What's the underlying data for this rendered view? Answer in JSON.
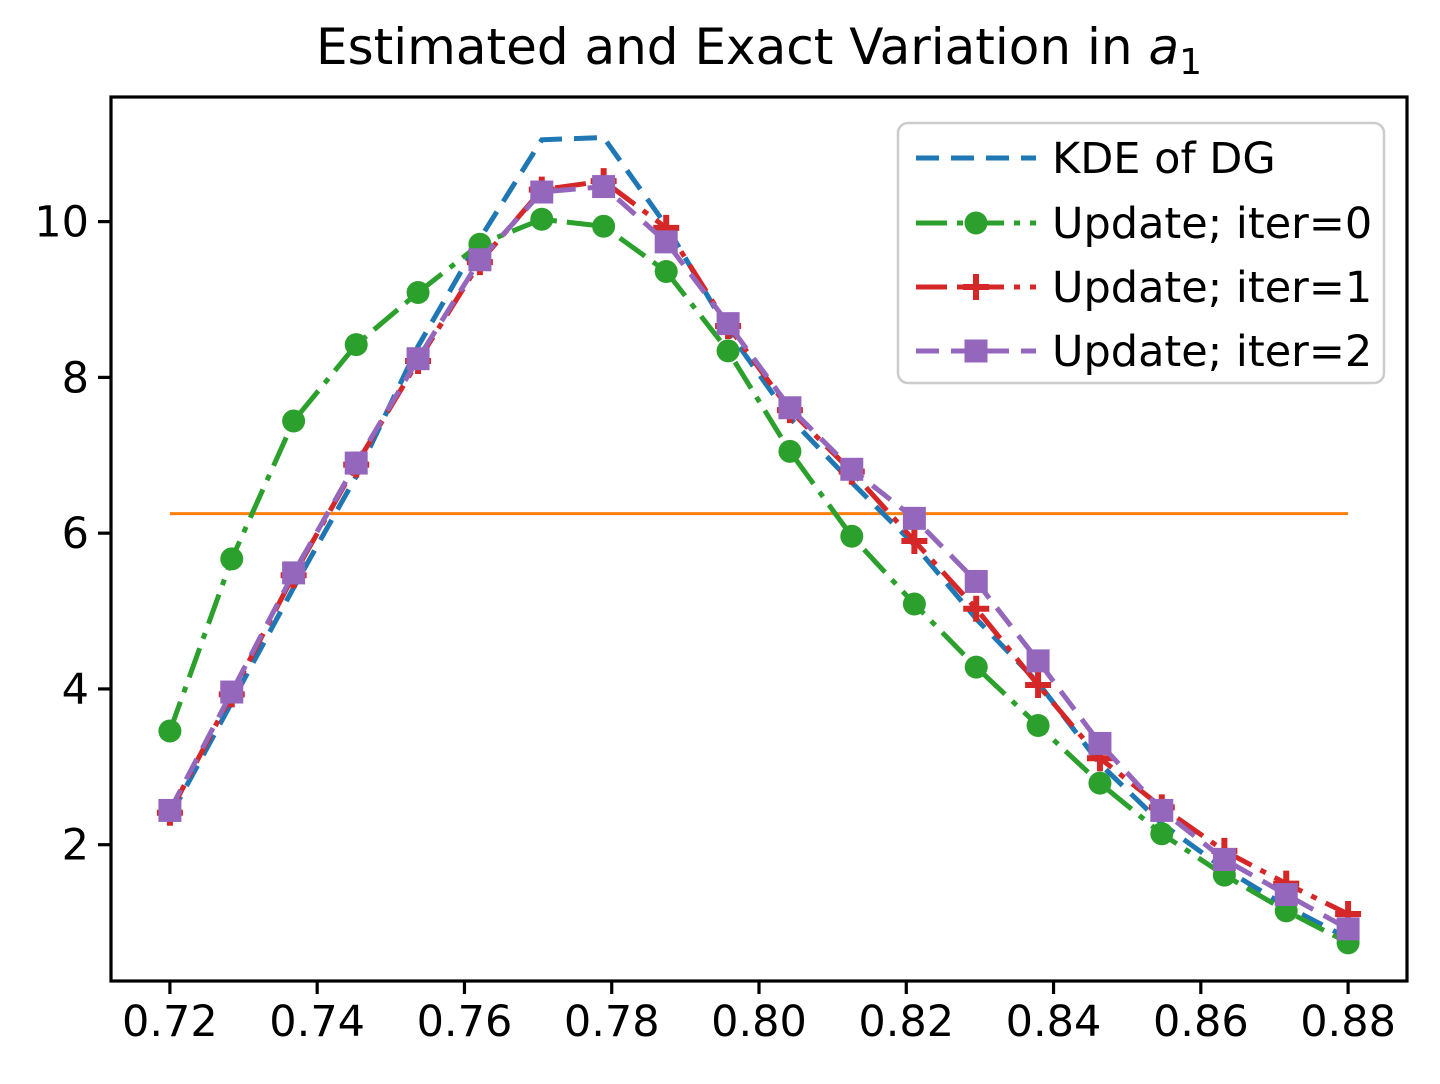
{
  "figure": {
    "title": {
      "main": "Estimated and Exact Variation in ",
      "var": "a",
      "sub": "1"
    }
  },
  "chart_data": {
    "type": "line",
    "title": "Estimated and Exact Variation in a_1",
    "xlabel": "",
    "ylabel": "",
    "grid": false,
    "legend_position": "upper right",
    "xlim": [
      0.712,
      0.888
    ],
    "ylim": [
      0.25,
      11.6
    ],
    "x_ticks": {
      "values": [
        0.72,
        0.74,
        0.76,
        0.78,
        0.8,
        0.82,
        0.84,
        0.86,
        0.88
      ],
      "labels": [
        "0.72",
        "0.74",
        "0.76",
        "0.78",
        "0.80",
        "0.82",
        "0.84",
        "0.86",
        "0.88"
      ]
    },
    "y_ticks": {
      "values": [
        2,
        4,
        6,
        8,
        10
      ],
      "labels": [
        "2",
        "4",
        "6",
        "8",
        "10"
      ]
    },
    "x": [
      0.72,
      0.7284,
      0.7368,
      0.7453,
      0.7537,
      0.7621,
      0.7705,
      0.7789,
      0.7874,
      0.7958,
      0.8042,
      0.8126,
      0.8211,
      0.8295,
      0.8379,
      0.8463,
      0.8547,
      0.8632,
      0.8716,
      0.88
    ],
    "series": [
      {
        "name": "KDE of DG",
        "color": "#1f77b4",
        "linestyle": "dashed",
        "marker": "none",
        "values": [
          2.36,
          3.83,
          5.3,
          6.73,
          8.4,
          9.78,
          11.05,
          11.08,
          9.95,
          8.6,
          7.48,
          6.65,
          5.85,
          4.9,
          4.08,
          3.04,
          2.27,
          1.69,
          1.21,
          0.8
        ]
      },
      {
        "name": "Update; iter=0",
        "color": "#2ca02c",
        "linestyle": "dashdot",
        "marker": "circle",
        "values": [
          3.46,
          5.67,
          7.44,
          8.42,
          9.09,
          9.71,
          10.03,
          9.94,
          9.36,
          8.34,
          7.05,
          5.96,
          5.09,
          4.28,
          3.53,
          2.79,
          2.14,
          1.61,
          1.15,
          0.74
        ]
      },
      {
        "name": "Update; iter=1",
        "color": "#d62728",
        "linestyle": "dashdot",
        "marker": "plus",
        "values": [
          2.41,
          3.93,
          5.46,
          6.88,
          8.21,
          9.48,
          10.41,
          10.52,
          9.92,
          8.66,
          7.58,
          6.79,
          5.9,
          5.03,
          4.05,
          3.11,
          2.48,
          1.92,
          1.5,
          1.11
        ]
      },
      {
        "name": "Update; iter=2",
        "color": "#9467bd",
        "linestyle": "dashed",
        "marker": "square",
        "values": [
          2.44,
          3.96,
          5.49,
          6.9,
          8.24,
          9.51,
          10.38,
          10.45,
          9.74,
          8.69,
          7.61,
          6.82,
          6.19,
          5.38,
          4.36,
          3.3,
          2.44,
          1.81,
          1.36,
          0.92
        ]
      }
    ],
    "reference_line": {
      "y": 6.25,
      "color": "#ff7f0e",
      "x_start": 0.72,
      "x_end": 0.88
    },
    "colors": {
      "kde": "#1f77b4",
      "iter0": "#2ca02c",
      "iter1": "#d62728",
      "iter2": "#9467bd",
      "reference": "#ff7f0e",
      "axis": "#000000",
      "legend_border": "#cccccc"
    }
  }
}
